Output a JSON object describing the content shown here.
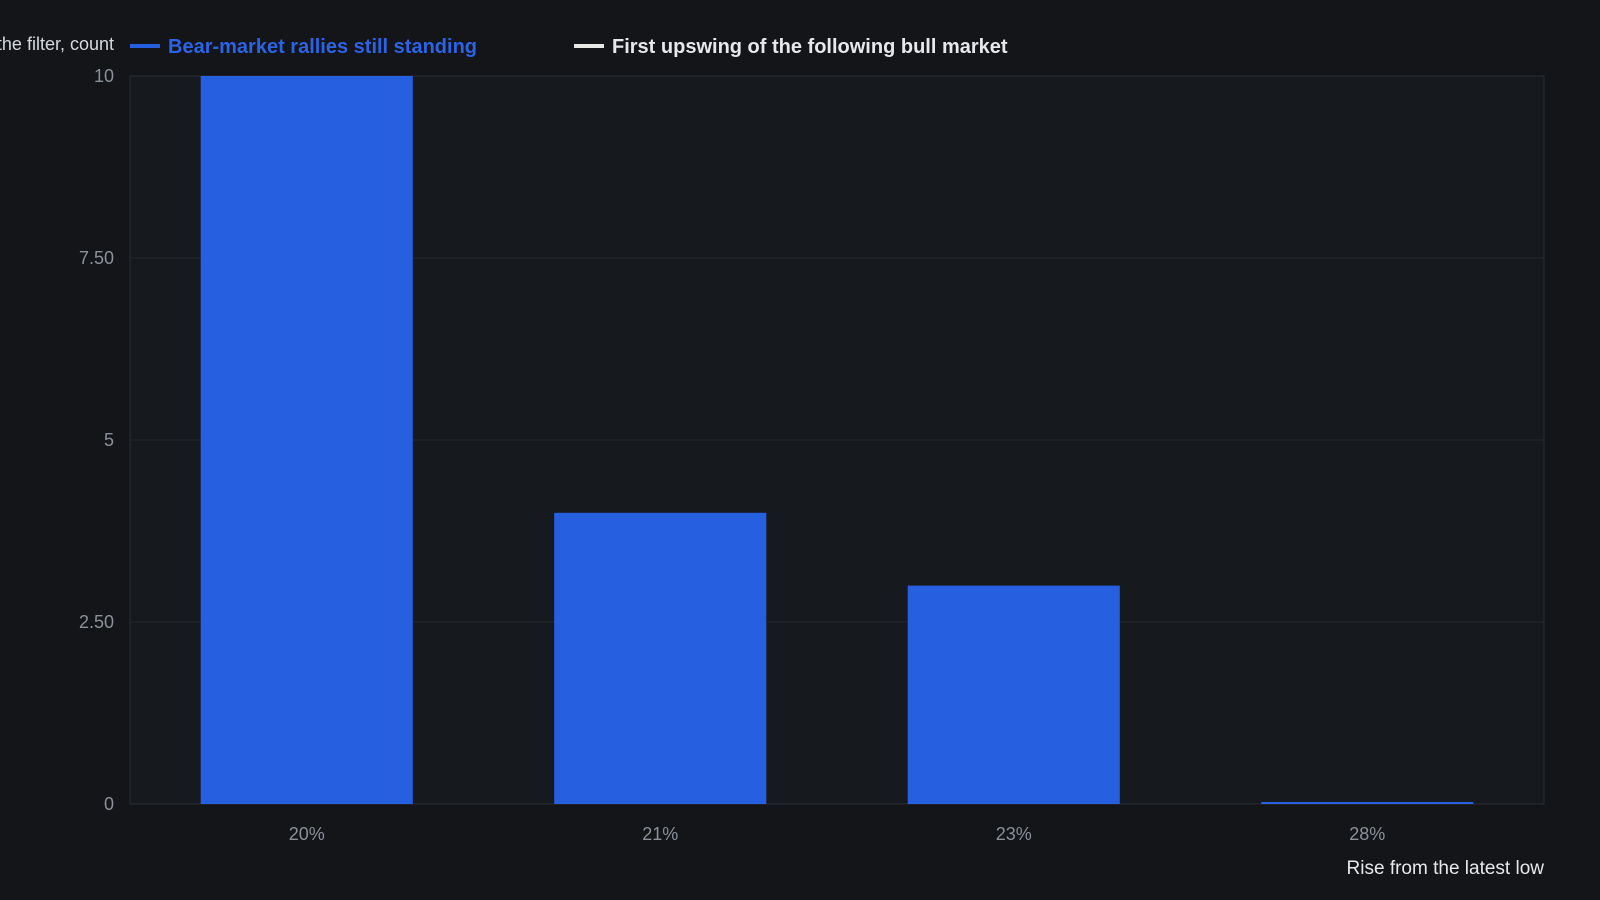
{
  "chart_data": {
    "type": "bar",
    "ylabel": "...the filter, count",
    "xlabel": "Rise from the latest low",
    "categories": [
      "20%",
      "21%",
      "23%",
      "28%"
    ],
    "series": [
      {
        "name": "Bear-market rallies still standing",
        "color": "#2660e0",
        "values": [
          10,
          4,
          3,
          0
        ]
      },
      {
        "name": "First upswing of the following bull market",
        "color": "#e8e8e6",
        "values": [
          0,
          0,
          0,
          0
        ]
      }
    ],
    "ylim": [
      0,
      10
    ],
    "yticks": [
      "0",
      "2.50",
      "5",
      "7.50",
      "10"
    ],
    "ytick_values": [
      0,
      2.5,
      5,
      7.5,
      10
    ],
    "grid": true,
    "legend_position": "top"
  },
  "colors": {
    "background": "#131518",
    "plot_background": "#16191d",
    "gridline": "#24272c",
    "axis_text": "#8b9099"
  }
}
